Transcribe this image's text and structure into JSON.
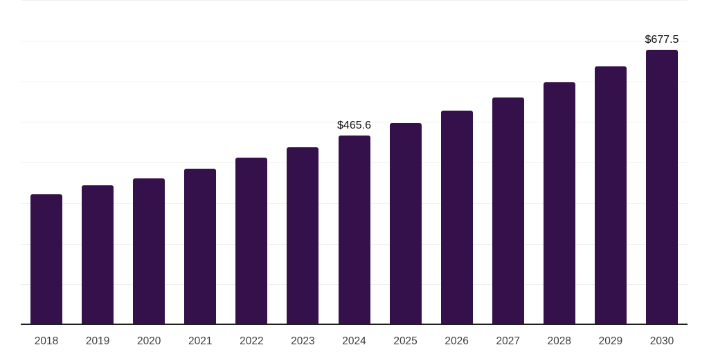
{
  "page": {
    "background": "#ffffff"
  },
  "chart_data": {
    "type": "bar",
    "title": "",
    "xlabel": "",
    "ylabel": "",
    "categories": [
      "2018",
      "2019",
      "2020",
      "2021",
      "2022",
      "2023",
      "2024",
      "2025",
      "2026",
      "2027",
      "2028",
      "2029",
      "2030"
    ],
    "values": [
      322.4,
      344.6,
      361.6,
      385.5,
      411.1,
      436.7,
      465.6,
      496.4,
      527.1,
      559.5,
      597.0,
      636.2,
      677.5
    ],
    "labeled_points": [
      {
        "category": "2024",
        "label": "$465.6"
      },
      {
        "category": "2030",
        "label": "$677.5"
      }
    ],
    "ylim": [
      0,
      800
    ],
    "grid_step": 100,
    "grid": true,
    "legend": false,
    "colors": {
      "bar": "#35114C",
      "gridline": "#f0f0f0",
      "axis": "#1f1f1f",
      "tick_label": "#3d3d3d",
      "data_label": "#0f0f0f",
      "background": "#ffffff"
    }
  }
}
